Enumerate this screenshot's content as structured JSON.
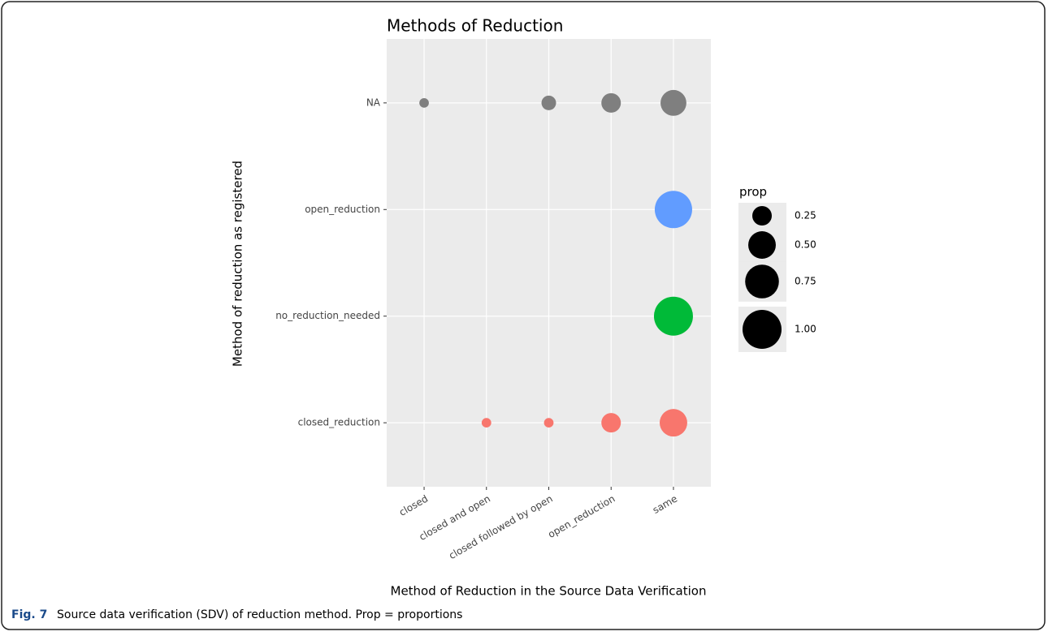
{
  "chart_data": {
    "type": "bubble",
    "title": "Methods of Reduction",
    "x_label": "Method of Reduction in the Source Data Verification",
    "y_label": "Method of reduction as registered",
    "categories": [
      "closed",
      "closed and open",
      "closed followed by open",
      "open_reduction",
      "same"
    ],
    "series": [
      {
        "name": "closed_reduction",
        "color": "#f8766d",
        "values": [
          null,
          0.06,
          0.06,
          0.25,
          0.5
        ]
      },
      {
        "name": "no_reduction_needed",
        "color": "#00ba38",
        "values": [
          null,
          null,
          null,
          null,
          1.0
        ]
      },
      {
        "name": "open_reduction",
        "color": "#619cff",
        "values": [
          null,
          null,
          null,
          null,
          0.92
        ]
      },
      {
        "name": "NA",
        "color": "#7f7f7f",
        "values": [
          0.06,
          null,
          0.14,
          0.25,
          0.44
        ]
      }
    ],
    "size_legend": {
      "title": "prop",
      "values": [
        0.25,
        {
          "value": 0.5,
          "label": "0.50"
        },
        {
          "value": 0.75,
          "label": "0.75"
        },
        {
          "value": 1,
          "label": "1.00"
        }
      ]
    },
    "grid": true
  },
  "caption": {
    "label": "Fig. 7",
    "text": "Source data verification (SDV) of reduction method. Prop = proportions"
  }
}
